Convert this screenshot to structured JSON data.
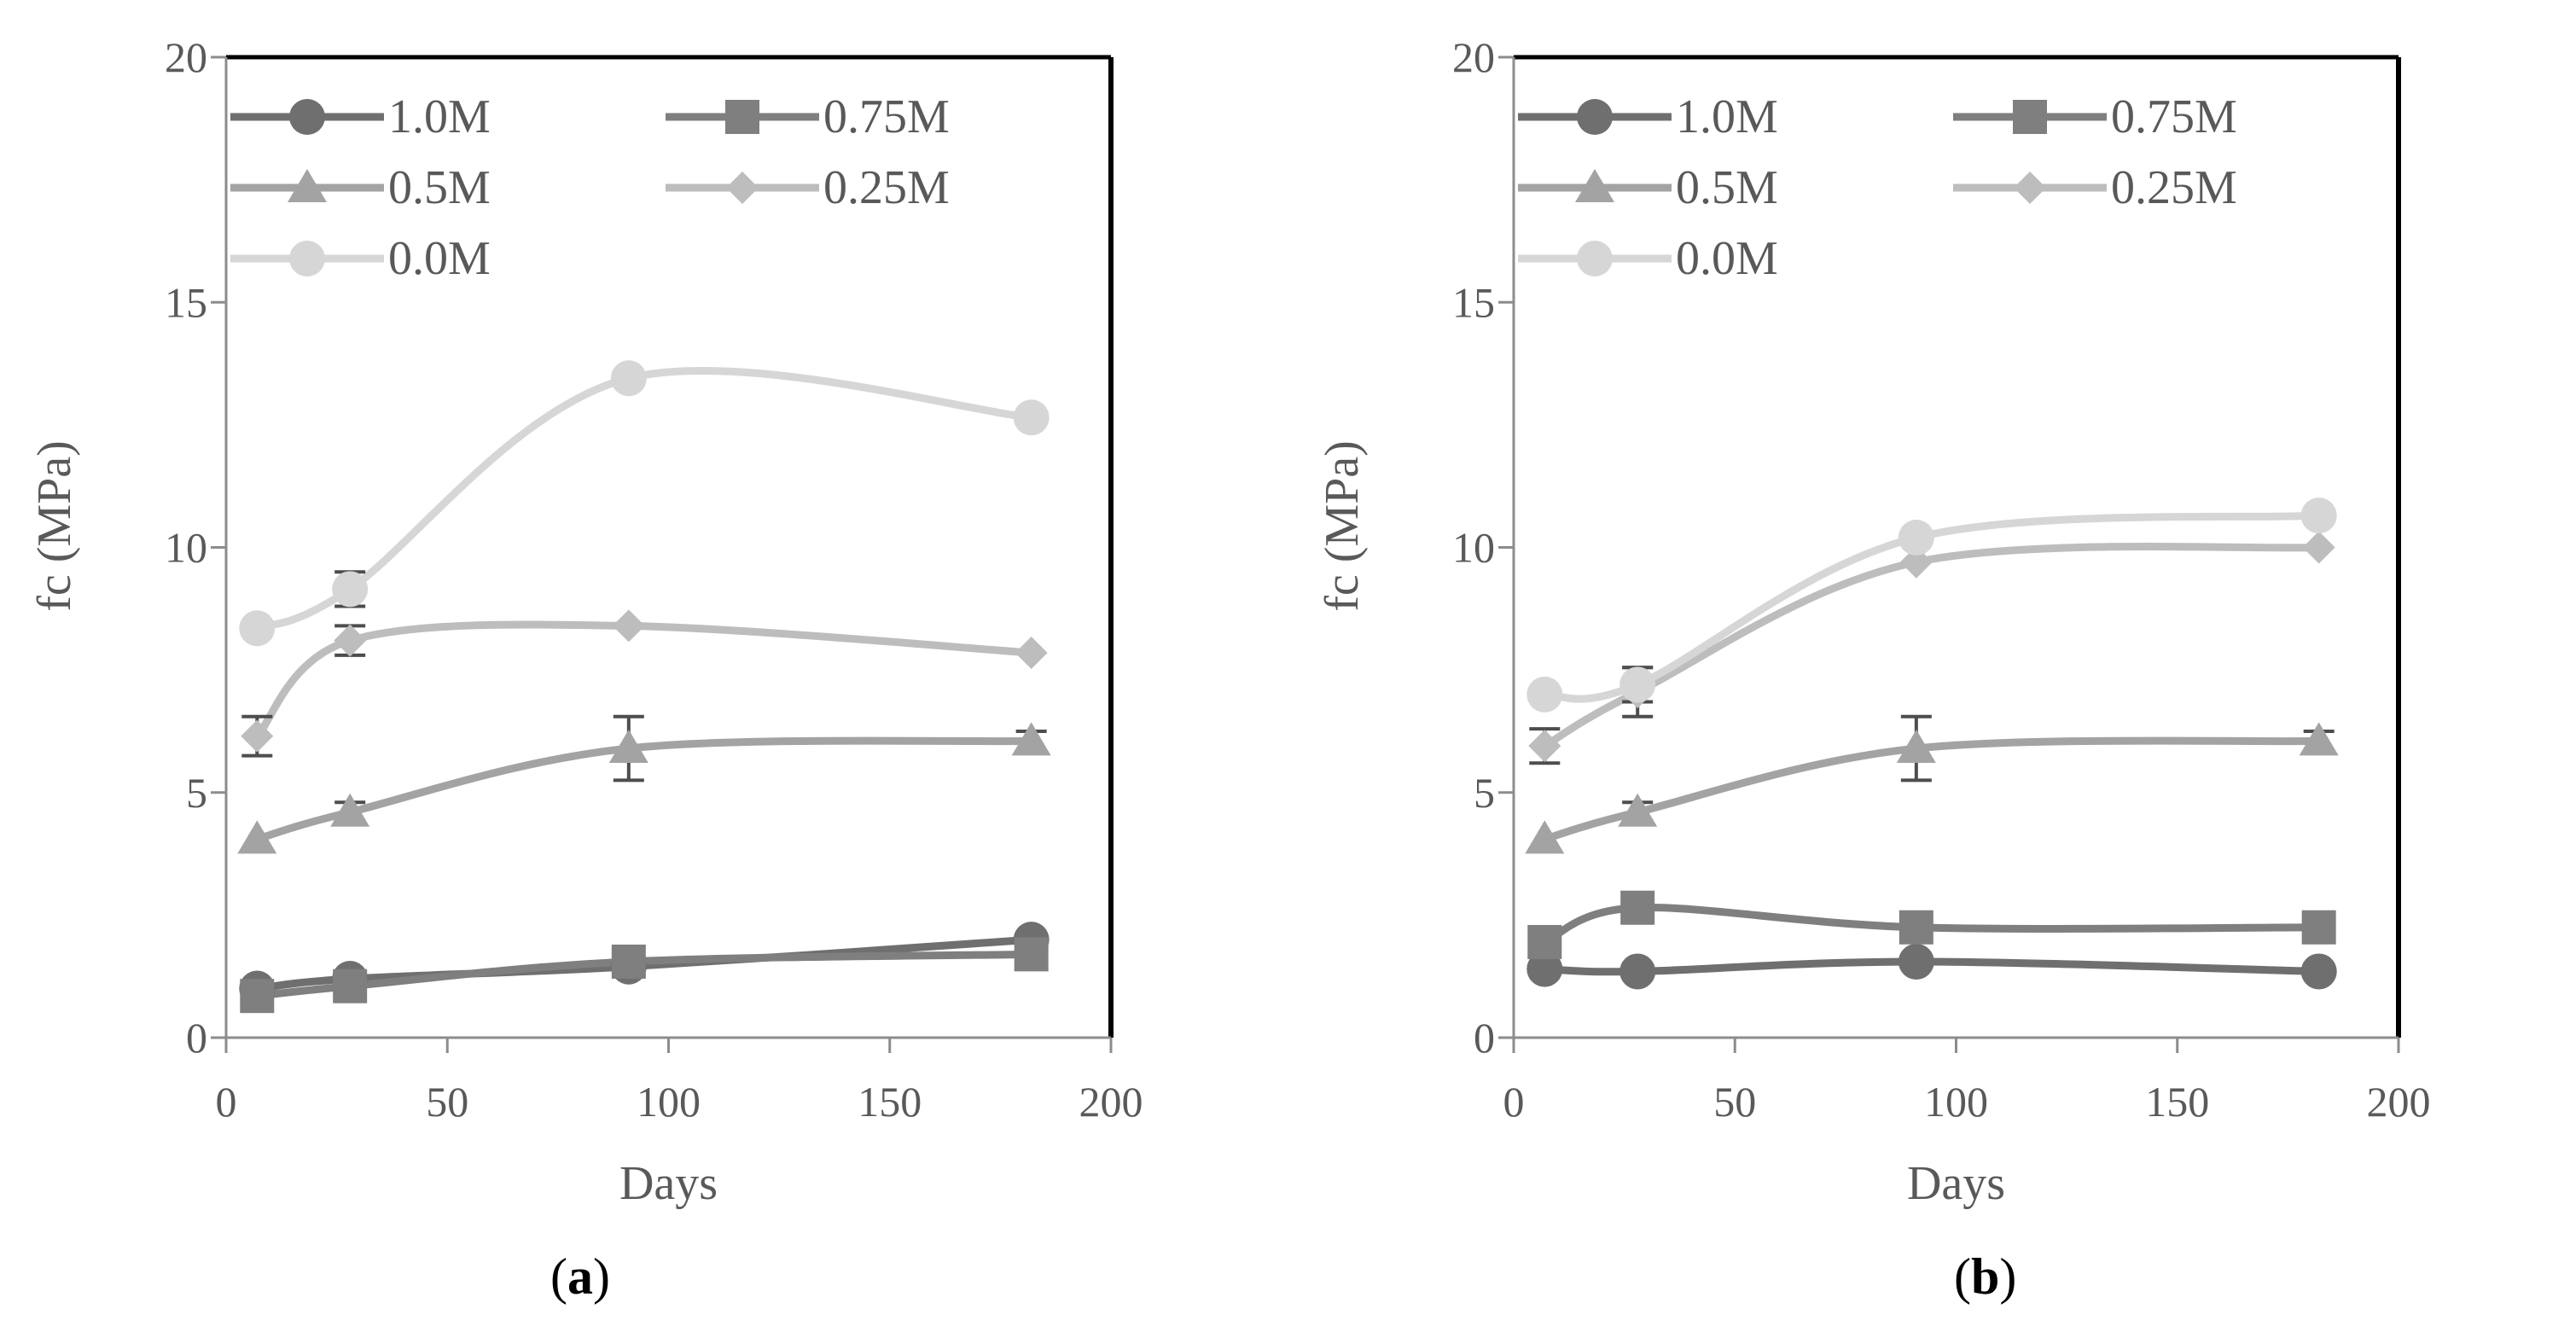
{
  "figure": {
    "panels": [
      "a",
      "b"
    ]
  },
  "chart_data": [
    {
      "type": "line",
      "panel_label": "a",
      "title": "",
      "xlabel": "Days",
      "ylabel": "fc (MPa)",
      "xlim": [
        0,
        200
      ],
      "ylim": [
        0,
        20
      ],
      "xticks": [
        0,
        50,
        100,
        150,
        200
      ],
      "yticks": [
        0,
        5,
        10,
        15,
        20
      ],
      "grid": false,
      "legend_position": "top",
      "x": [
        7,
        28,
        91,
        182
      ],
      "series": [
        {
          "name": "1.0M",
          "marker": "circle",
          "color": "#6f6f6f",
          "values": [
            1.0,
            1.2,
            1.45,
            2.0
          ],
          "errors": [
            0,
            0,
            0,
            0
          ]
        },
        {
          "name": "0.75M",
          "marker": "square",
          "color": "#7f7f7f",
          "values": [
            0.85,
            1.05,
            1.55,
            1.7
          ],
          "errors": [
            0,
            0,
            0,
            0
          ]
        },
        {
          "name": "0.5M",
          "marker": "triangle",
          "color": "#a3a3a3",
          "values": [
            4.05,
            4.6,
            5.9,
            6.05
          ],
          "errors": [
            0,
            0.2,
            0.65,
            0.2
          ]
        },
        {
          "name": "0.25M",
          "marker": "diamond",
          "color": "#bdbdbd",
          "values": [
            6.15,
            8.1,
            8.4,
            7.85
          ],
          "errors": [
            0.4,
            0.3,
            0,
            0
          ]
        },
        {
          "name": "0.0M",
          "marker": "circle",
          "color": "#d6d6d6",
          "values": [
            8.35,
            9.15,
            13.45,
            12.65
          ],
          "errors": [
            0,
            0.35,
            0,
            0
          ]
        }
      ]
    },
    {
      "type": "line",
      "panel_label": "b",
      "title": "",
      "xlabel": "Days",
      "ylabel": "fc (MPa)",
      "xlim": [
        0,
        200
      ],
      "ylim": [
        0,
        20
      ],
      "xticks": [
        0,
        50,
        100,
        150,
        200
      ],
      "yticks": [
        0,
        5,
        10,
        15,
        20
      ],
      "grid": false,
      "legend_position": "top",
      "x": [
        7,
        28,
        91,
        182
      ],
      "series": [
        {
          "name": "1.0M",
          "marker": "circle",
          "color": "#6f6f6f",
          "values": [
            1.4,
            1.35,
            1.55,
            1.35
          ],
          "errors": [
            0,
            0,
            0,
            0
          ]
        },
        {
          "name": "0.75M",
          "marker": "square",
          "color": "#7f7f7f",
          "values": [
            1.95,
            2.65,
            2.25,
            2.25
          ],
          "errors": [
            0,
            0,
            0,
            0
          ]
        },
        {
          "name": "0.5M",
          "marker": "triangle",
          "color": "#a3a3a3",
          "values": [
            4.05,
            4.6,
            5.9,
            6.05
          ],
          "errors": [
            0,
            0.2,
            0.65,
            0.2
          ]
        },
        {
          "name": "0.25M",
          "marker": "diamond",
          "color": "#bdbdbd",
          "values": [
            5.95,
            7.05,
            9.7,
            10.0
          ],
          "errors": [
            0.35,
            0.5,
            0,
            0
          ]
        },
        {
          "name": "0.0M",
          "marker": "circle",
          "color": "#d6d6d6",
          "values": [
            7.0,
            7.2,
            10.2,
            10.65
          ],
          "errors": [
            0,
            0.35,
            0,
            0
          ]
        }
      ]
    }
  ]
}
